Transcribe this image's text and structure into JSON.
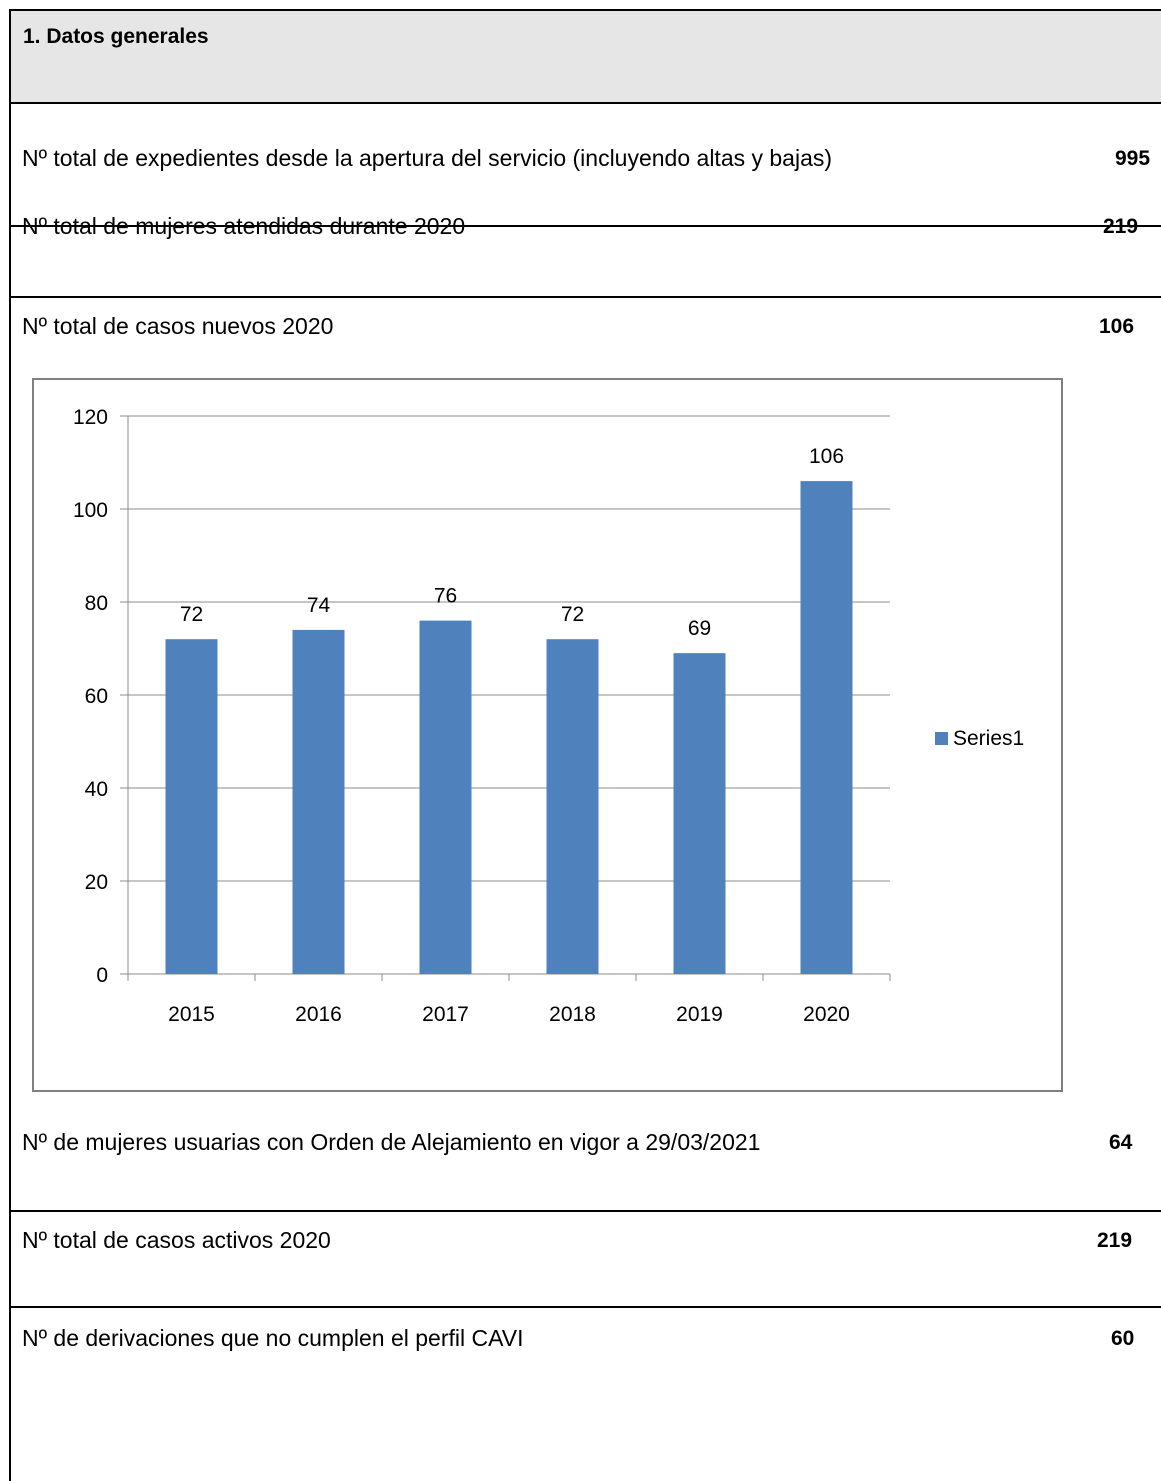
{
  "section": {
    "title": "1. Datos generales"
  },
  "rows": [
    {
      "label": "Nº total de expedientes desde la apertura del servicio (incluyendo altas y bajas)",
      "value": "995"
    },
    {
      "label": "Nº total de mujeres atendidas durante 2020",
      "value": "219"
    },
    {
      "label": "Nº total de casos nuevos 2020",
      "value": "106"
    },
    {
      "label": "Nº de mujeres usuarias con Orden de Alejamiento en vigor a 29/03/2021",
      "value": "64"
    },
    {
      "label": "Nº total de casos activos 2020",
      "value": "219"
    },
    {
      "label": "Nº de derivaciones que no cumplen el perfil CAVI",
      "value": "60"
    }
  ],
  "chart_data": {
    "type": "bar",
    "categories": [
      "2015",
      "2016",
      "2017",
      "2018",
      "2019",
      "2020"
    ],
    "series": [
      {
        "name": "Series1",
        "values": [
          72,
          74,
          76,
          72,
          69,
          106
        ],
        "color": "#4f81bd"
      }
    ],
    "data_labels": [
      "72",
      "74",
      "76",
      "72",
      "69",
      "106"
    ],
    "ylim": [
      0,
      120
    ],
    "yticks": [
      "0",
      "20",
      "40",
      "60",
      "80",
      "100",
      "120"
    ],
    "grid": true,
    "legend": "right"
  }
}
